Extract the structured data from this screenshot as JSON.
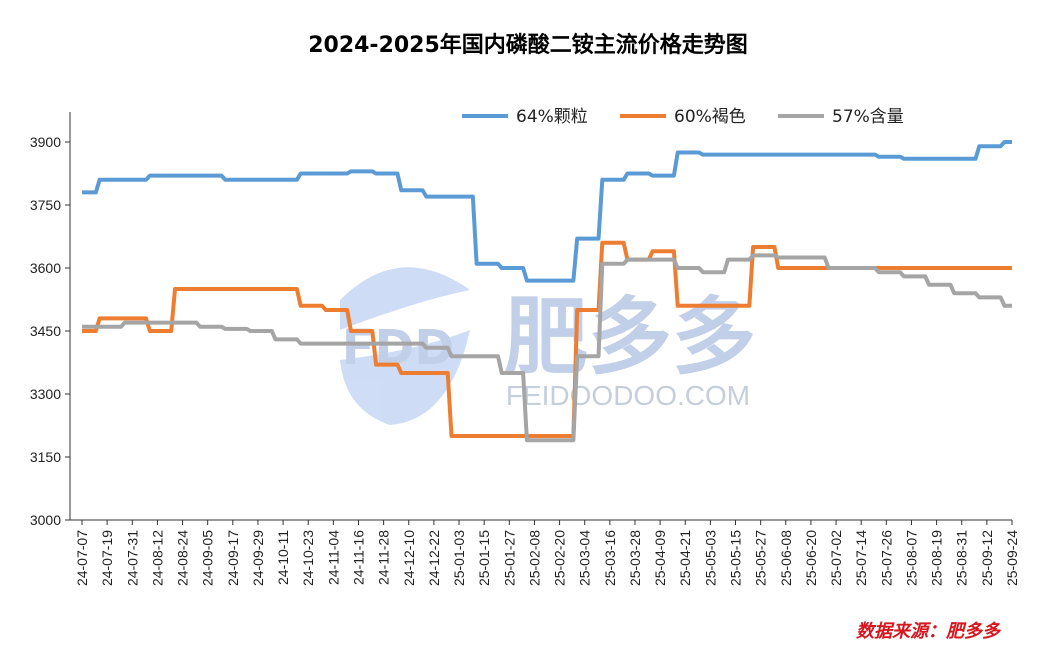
{
  "chart_data": {
    "type": "line",
    "title": "2024-2025年国内磷酸二铵主流价格走势图",
    "xlabel": "",
    "ylabel": "",
    "ylim": [
      3000,
      4000
    ],
    "yticks": [
      3000,
      3150,
      3300,
      3450,
      3600,
      3750,
      3900
    ],
    "x": [
      "24-07-07",
      "24-07-19",
      "24-07-31",
      "24-08-12",
      "24-08-24",
      "24-09-05",
      "24-09-17",
      "24-09-29",
      "24-10-11",
      "24-10-23",
      "24-11-04",
      "24-11-16",
      "24-11-28",
      "24-12-10",
      "24-12-22",
      "25-01-03",
      "25-01-15",
      "25-01-27",
      "25-02-08",
      "25-02-20",
      "25-03-04",
      "25-03-16",
      "25-03-28",
      "25-04-09",
      "25-04-21",
      "25-05-03",
      "25-05-15",
      "25-05-27",
      "25-06-08",
      "25-06-20",
      "25-07-02",
      "25-07-14",
      "25-07-26",
      "25-08-07",
      "25-08-19",
      "25-08-31",
      "25-09-12",
      "25-09-24"
    ],
    "legend_position": "top-right",
    "series": [
      {
        "name": "64%颗粒",
        "color": "#5b9bd5",
        "values": [
          3780,
          3810,
          3810,
          3820,
          3820,
          3820,
          3810,
          3810,
          3810,
          3825,
          3825,
          3830,
          3825,
          3785,
          3770,
          3770,
          3610,
          3600,
          3570,
          3570,
          3670,
          3810,
          3825,
          3820,
          3875,
          3870,
          3870,
          3870,
          3870,
          3870,
          3870,
          3870,
          3865,
          3860,
          3860,
          3860,
          3890,
          3900
        ]
      },
      {
        "name": "60%褐色",
        "color": "#ed7d31",
        "values": [
          3450,
          3480,
          3480,
          3450,
          3550,
          3550,
          3550,
          3550,
          3550,
          3510,
          3500,
          3450,
          3370,
          3350,
          3350,
          3200,
          3200,
          3200,
          3200,
          3200,
          3500,
          3660,
          3620,
          3640,
          3510,
          3510,
          3510,
          3650,
          3600,
          3600,
          3600,
          3600,
          3600,
          3600,
          3600,
          3600,
          3600,
          3600
        ]
      },
      {
        "name": "57%含量",
        "color": "#a5a5a5",
        "values": [
          3460,
          3460,
          3470,
          3470,
          3470,
          3460,
          3455,
          3450,
          3430,
          3420,
          3420,
          3420,
          3420,
          3420,
          3410,
          3390,
          3390,
          3350,
          3190,
          3190,
          3390,
          3610,
          3620,
          3620,
          3600,
          3590,
          3620,
          3630,
          3625,
          3625,
          3600,
          3600,
          3590,
          3580,
          3560,
          3540,
          3530,
          3510
        ]
      }
    ]
  },
  "watermark": {
    "logo": "FDD",
    "name": "肥多多",
    "domain": "FEIDOODOO.COM"
  },
  "source_note": "数据来源：肥多多"
}
